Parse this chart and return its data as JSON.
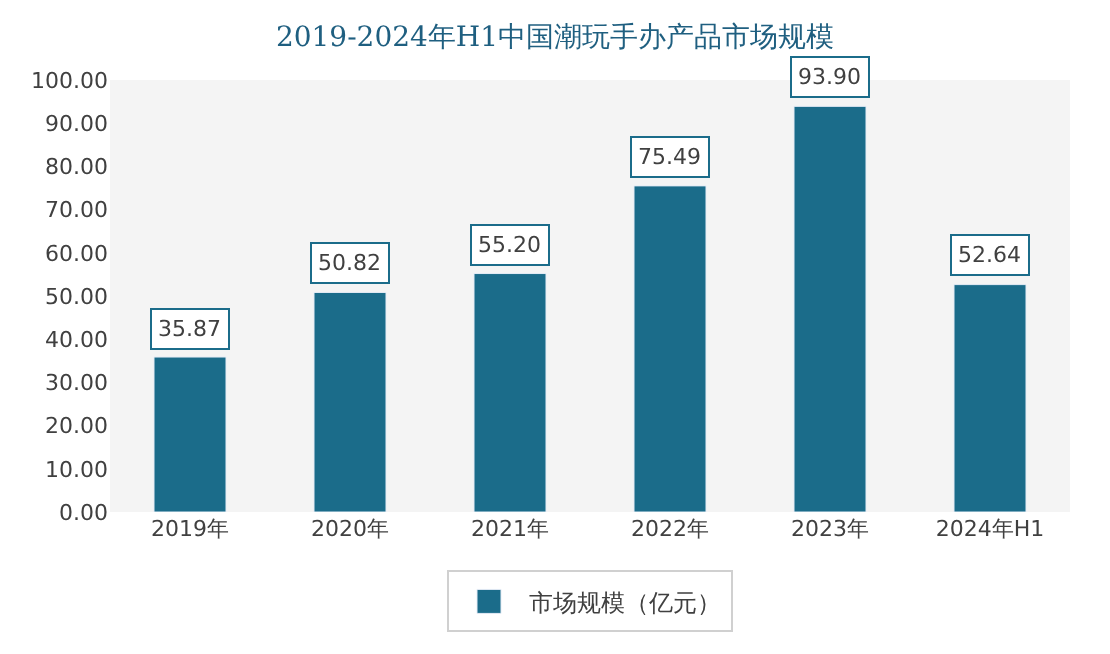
{
  "chart_data": {
    "type": "bar",
    "title": "2019-2024年H1中国潮玩手办产品市场规模",
    "categories": [
      "2019年",
      "2020年",
      "2021年",
      "2022年",
      "2023年",
      "2024年H1"
    ],
    "series": [
      {
        "name": "市场规模（亿元）",
        "color": "#1b6c8a",
        "values": [
          35.87,
          50.82,
          55.2,
          75.49,
          93.9,
          52.64
        ]
      }
    ],
    "value_labels": [
      "35.87",
      "50.82",
      "55.20",
      "75.49",
      "93.90",
      "52.64"
    ],
    "ylim": [
      0,
      100
    ],
    "yticks": [
      {
        "value": 0,
        "label": "0.00"
      },
      {
        "value": 10,
        "label": "10.00"
      },
      {
        "value": 20,
        "label": "20.00"
      },
      {
        "value": 30,
        "label": "30.00"
      },
      {
        "value": 40,
        "label": "40.00"
      },
      {
        "value": 50,
        "label": "50.00"
      },
      {
        "value": 60,
        "label": "60.00"
      },
      {
        "value": 70,
        "label": "70.00"
      },
      {
        "value": 80,
        "label": "80.00"
      },
      {
        "value": 90,
        "label": "90.00"
      },
      {
        "value": 100,
        "label": "100.00"
      }
    ],
    "grid": false,
    "legend": "bottom"
  }
}
